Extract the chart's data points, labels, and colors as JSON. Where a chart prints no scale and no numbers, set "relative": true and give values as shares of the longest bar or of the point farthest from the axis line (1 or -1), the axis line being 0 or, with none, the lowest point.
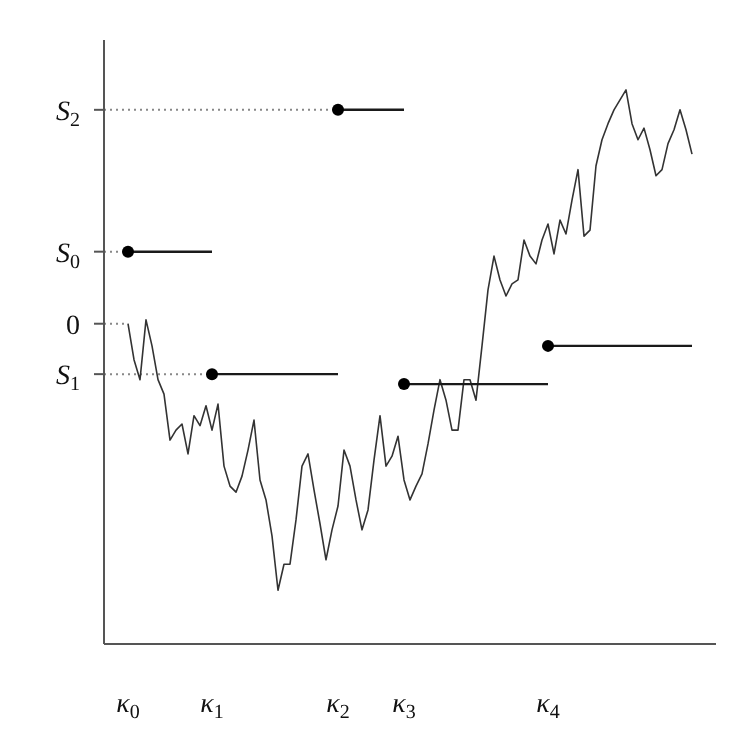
{
  "chart_data": {
    "type": "line",
    "relative": true,
    "categories": [
      "κ$_{0}$",
      null,
      null,
      null,
      null,
      null,
      null,
      null,
      null,
      null,
      null,
      null,
      null,
      null,
      "κ$_{1}$",
      null,
      null,
      null,
      null,
      null,
      null,
      null,
      null,
      null,
      null,
      null,
      null,
      null,
      null,
      null,
      null,
      null,
      null,
      null,
      null,
      "κ$_{2}$",
      null,
      null,
      null,
      null,
      null,
      null,
      null,
      null,
      null,
      null,
      "κ$_{3}$",
      null,
      null,
      null,
      null,
      null,
      null,
      null,
      null,
      null,
      null,
      null,
      null,
      null,
      null,
      null,
      null,
      null,
      null,
      null,
      null,
      null,
      null,
      null,
      "κ$_{4}$",
      null,
      null,
      null,
      null,
      null,
      null,
      null,
      null,
      null,
      null,
      null,
      null,
      null,
      null,
      null,
      null,
      null,
      null,
      null,
      null,
      null,
      null,
      null,
      null
    ],
    "ref_lines": [
      {
        "axis": "y",
        "value": 0.964,
        "label": "S$_{2}$",
        "color": "#888888",
        "line_style": "dotted"
      },
      {
        "axis": "y",
        "value": 0.708,
        "label": "S$_{0}$",
        "color": "#888888",
        "line_style": "dotted"
      },
      {
        "axis": "y",
        "value": 0.487,
        "label": "S$_{1}$",
        "color": "#888888",
        "line_style": "dotted"
      }
    ],
    "annotations": [
      "0"
    ],
    "series": [
      {
        "color": "#333333",
        "line_style": "solid",
        "values": [
          0.578,
          0.513,
          0.477,
          0.585,
          0.538,
          0.477,
          0.451,
          0.368,
          0.386,
          0.397,
          0.343,
          0.412,
          0.394,
          0.43,
          0.386,
          0.433,
          0.321,
          0.285,
          0.274,
          0.303,
          0.35,
          0.404,
          0.296,
          0.26,
          0.195,
          0.097,
          0.144,
          0.144,
          0.224,
          0.321,
          0.343,
          0.278,
          0.217,
          0.152,
          0.206,
          0.249,
          0.35,
          0.321,
          0.26,
          0.206,
          0.242,
          0.332,
          0.412,
          0.321,
          0.339,
          0.375,
          0.296,
          0.26,
          0.285,
          0.307,
          0.361,
          0.422,
          0.477,
          0.44,
          0.386,
          0.386,
          0.477,
          0.477,
          0.44,
          0.538,
          0.639,
          0.7,
          0.657,
          0.628,
          0.65,
          0.657,
          0.729,
          0.7,
          0.686,
          0.729,
          0.758,
          0.704,
          0.765,
          0.74,
          0.801,
          0.856,
          0.736,
          0.747,
          0.863,
          0.91,
          0.939,
          0.964,
          0.982,
          1,
          0.939,
          0.91,
          0.931,
          0.892,
          0.845,
          0.856,
          0.903,
          0.928,
          0.964,
          0.928,
          0.884
        ]
      },
      {
        "color": "#1a1a1a",
        "line_style": "solid",
        "values": [
          0.708,
          0.708,
          0.708,
          0.708,
          0.708,
          0.708,
          0.708,
          0.708,
          0.708,
          0.708,
          0.708,
          0.708,
          0.708,
          0.708,
          0.708,
          null,
          null,
          null,
          null,
          null,
          null,
          null,
          null,
          null,
          null,
          null,
          null,
          null,
          null,
          null,
          null,
          null,
          null,
          null,
          null,
          null,
          null,
          null,
          null,
          null,
          null,
          null,
          null,
          null,
          null,
          null,
          null,
          null,
          null,
          null,
          null,
          null,
          null,
          null,
          null,
          null,
          null,
          null,
          null,
          null,
          null,
          null,
          null,
          null,
          null,
          null,
          null,
          null,
          null,
          null,
          null,
          null,
          null,
          null,
          null,
          null,
          null,
          null,
          null,
          null,
          null,
          null,
          null,
          null,
          null,
          null,
          null,
          null,
          null,
          null,
          null,
          null,
          null,
          null,
          null
        ]
      },
      {
        "color": "#1a1a1a",
        "line_style": "solid",
        "values": [
          null,
          null,
          null,
          null,
          null,
          null,
          null,
          null,
          null,
          null,
          null,
          null,
          null,
          null,
          0.487,
          0.487,
          0.487,
          0.487,
          0.487,
          0.487,
          0.487,
          0.487,
          0.487,
          0.487,
          0.487,
          0.487,
          0.487,
          0.487,
          0.487,
          0.487,
          0.487,
          0.487,
          0.487,
          0.487,
          0.487,
          0.487,
          null,
          null,
          null,
          null,
          null,
          null,
          null,
          null,
          null,
          null,
          null,
          null,
          null,
          null,
          null,
          null,
          null,
          null,
          null,
          null,
          null,
          null,
          null,
          null,
          null,
          null,
          null,
          null,
          null,
          null,
          null,
          null,
          null,
          null,
          null,
          null,
          null,
          null,
          null,
          null,
          null,
          null,
          null,
          null,
          null,
          null,
          null,
          null,
          null,
          null,
          null,
          null,
          null,
          null,
          null,
          null,
          null,
          null,
          null
        ]
      },
      {
        "color": "#1a1a1a",
        "line_style": "solid",
        "values": [
          null,
          null,
          null,
          null,
          null,
          null,
          null,
          null,
          null,
          null,
          null,
          null,
          null,
          null,
          null,
          null,
          null,
          null,
          null,
          null,
          null,
          null,
          null,
          null,
          null,
          null,
          null,
          null,
          null,
          null,
          null,
          null,
          null,
          null,
          null,
          0.964,
          0.964,
          0.964,
          0.964,
          0.964,
          0.964,
          0.964,
          0.964,
          0.964,
          0.964,
          0.964,
          0.964,
          null,
          null,
          null,
          null,
          null,
          null,
          null,
          null,
          null,
          null,
          null,
          null,
          null,
          null,
          null,
          null,
          null,
          null,
          null,
          null,
          null,
          null,
          null,
          null,
          null,
          null,
          null,
          null,
          null,
          null,
          null,
          null,
          null,
          null,
          null,
          null,
          null,
          null,
          null,
          null,
          null,
          null,
          null,
          null,
          null,
          null,
          null,
          null
        ]
      },
      {
        "color": "#1a1a1a",
        "line_style": "solid",
        "values": [
          null,
          null,
          null,
          null,
          null,
          null,
          null,
          null,
          null,
          null,
          null,
          null,
          null,
          null,
          null,
          null,
          null,
          null,
          null,
          null,
          null,
          null,
          null,
          null,
          null,
          null,
          null,
          null,
          null,
          null,
          null,
          null,
          null,
          null,
          null,
          null,
          null,
          null,
          null,
          null,
          null,
          null,
          null,
          null,
          null,
          null,
          0.469,
          0.469,
          0.469,
          0.469,
          0.469,
          0.469,
          0.469,
          0.469,
          0.469,
          0.469,
          0.469,
          0.469,
          0.469,
          0.469,
          0.469,
          0.469,
          0.469,
          0.469,
          0.469,
          0.469,
          0.469,
          0.469,
          0.469,
          0.469,
          0.469,
          null,
          null,
          null,
          null,
          null,
          null,
          null,
          null,
          null,
          null,
          null,
          null,
          null,
          null,
          null,
          null,
          null,
          null,
          null,
          null,
          null,
          null,
          null,
          null
        ]
      },
      {
        "color": "#1a1a1a",
        "line_style": "solid",
        "values": [
          null,
          null,
          null,
          null,
          null,
          null,
          null,
          null,
          null,
          null,
          null,
          null,
          null,
          null,
          null,
          null,
          null,
          null,
          null,
          null,
          null,
          null,
          null,
          null,
          null,
          null,
          null,
          null,
          null,
          null,
          null,
          null,
          null,
          null,
          null,
          null,
          null,
          null,
          null,
          null,
          null,
          null,
          null,
          null,
          null,
          null,
          null,
          null,
          null,
          null,
          null,
          null,
          null,
          null,
          null,
          null,
          null,
          null,
          null,
          null,
          null,
          null,
          null,
          null,
          null,
          null,
          null,
          null,
          null,
          null,
          0.538,
          0.538,
          0.538,
          0.538,
          0.538,
          0.538,
          0.538,
          0.538,
          0.538,
          0.538,
          0.538,
          0.538,
          0.538,
          0.538,
          0.538,
          0.538,
          0.538,
          0.538,
          0.538,
          0.538,
          0.538,
          0.538,
          0.538,
          0.538,
          0.538
        ]
      },
      {
        "type": "scatter",
        "color": "#000000",
        "marker": "circle",
        "values": [
          0.708,
          null,
          null,
          null,
          null,
          null,
          null,
          null,
          null,
          null,
          null,
          null,
          null,
          null,
          0.487,
          null,
          null,
          null,
          null,
          null,
          null,
          null,
          null,
          null,
          null,
          null,
          null,
          null,
          null,
          null,
          null,
          null,
          null,
          null,
          null,
          0.964,
          null,
          null,
          null,
          null,
          null,
          null,
          null,
          null,
          null,
          null,
          0.469,
          null,
          null,
          null,
          null,
          null,
          null,
          null,
          null,
          null,
          null,
          null,
          null,
          null,
          null,
          null,
          null,
          null,
          null,
          null,
          null,
          null,
          null,
          null,
          0.538,
          null,
          null,
          null,
          null,
          null,
          null,
          null,
          null,
          null,
          null,
          null,
          null,
          null,
          null,
          null,
          null,
          null,
          null,
          null,
          null,
          null,
          null,
          null,
          null
        ]
      }
    ]
  }
}
